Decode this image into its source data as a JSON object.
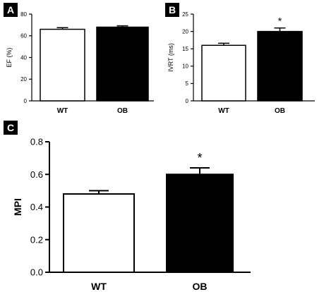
{
  "chart_data": [
    {
      "panel": "A",
      "type": "bar",
      "categories": [
        "WT",
        "OB"
      ],
      "values": [
        66,
        68
      ],
      "errors": [
        1.5,
        1.2
      ],
      "bar_colors": [
        "#ffffff",
        "#000000"
      ],
      "ylabel": "EF (%)",
      "ylim": [
        0,
        80
      ],
      "yticks": [
        0,
        20,
        40,
        60,
        80
      ],
      "significance": [
        "",
        ""
      ]
    },
    {
      "panel": "B",
      "type": "bar",
      "categories": [
        "WT",
        "OB"
      ],
      "values": [
        16,
        20
      ],
      "errors": [
        0.6,
        1.0
      ],
      "bar_colors": [
        "#ffffff",
        "#000000"
      ],
      "ylabel": "IVRT (ms)",
      "ylim": [
        0,
        25
      ],
      "yticks": [
        0,
        5,
        10,
        15,
        20,
        25
      ],
      "significance": [
        "",
        "*"
      ]
    },
    {
      "panel": "C",
      "type": "bar",
      "categories": [
        "WT",
        "OB"
      ],
      "values": [
        0.48,
        0.6
      ],
      "errors": [
        0.02,
        0.04
      ],
      "bar_colors": [
        "#ffffff",
        "#000000"
      ],
      "ylabel": "MPI",
      "ylim": [
        0,
        0.8
      ],
      "yticks": [
        "0.0",
        "0.2",
        "0.4",
        "0.6",
        "0.8"
      ],
      "significance": [
        "",
        "*"
      ]
    }
  ]
}
